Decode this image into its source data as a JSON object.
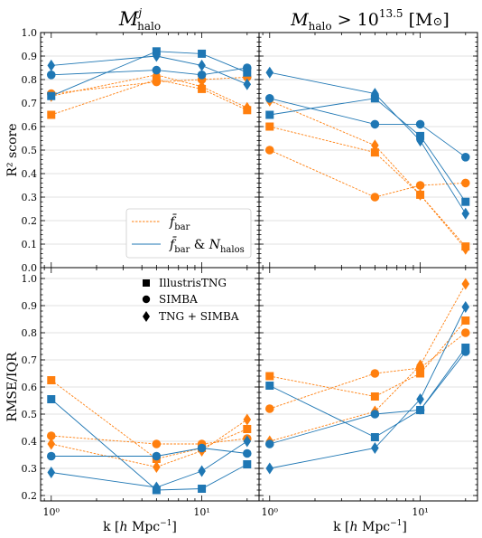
{
  "titles": {
    "left_base": "M",
    "left_sup": "j",
    "left_sub": "halo",
    "right_base": "M",
    "right_sub": "halo",
    "right_rest": " > 10",
    "right_exp": "13.5",
    "right_unit_open": " [M",
    "right_unit_sym": "⊙",
    "right_unit_close": "]"
  },
  "ylabel_top": "R² score",
  "ylabel_bottom": "RMSE/IQR",
  "xlabel": "k [h Mpc⁻¹]",
  "legend_lines": {
    "fbar": "f̄ bar",
    "fbar_n": "f̄ bar & N halos"
  },
  "legend_markers": {
    "tng": "IllustrisTNG",
    "simba": "SIMBA",
    "both": "TNG + SIMBA"
  },
  "colors": {
    "fbar": "#ff7f0e",
    "fbar_n": "#1f77b4"
  },
  "chart_data": [
    {
      "type": "line",
      "panel": "top-left",
      "title": "M^j_halo",
      "ylabel": "R² score",
      "xscale": "log",
      "xlim": [
        0.85,
        24
      ],
      "ylim": [
        0.0,
        1.0
      ],
      "yticks": [
        "0.0",
        "0.1",
        "0.2",
        "0.3",
        "0.4",
        "0.5",
        "0.6",
        "0.7",
        "0.8",
        "0.9",
        "1.0"
      ],
      "x": [
        1,
        5,
        10,
        20
      ],
      "series": [
        {
          "name": "f̄ bar",
          "sim": "IllustrisTNG",
          "values": [
            0.65,
            0.8,
            0.76,
            0.67
          ]
        },
        {
          "name": "f̄ bar",
          "sim": "SIMBA",
          "values": [
            0.74,
            0.79,
            0.8,
            0.81
          ]
        },
        {
          "name": "f̄ bar",
          "sim": "TNG + SIMBA",
          "values": [
            0.73,
            0.82,
            0.77,
            0.68
          ]
        },
        {
          "name": "f̄ bar & N halos",
          "sim": "IllustrisTNG",
          "values": [
            0.73,
            0.92,
            0.91,
            0.83
          ]
        },
        {
          "name": "f̄ bar & N halos",
          "sim": "SIMBA",
          "values": [
            0.82,
            0.84,
            0.82,
            0.85
          ]
        },
        {
          "name": "f̄ bar & N halos",
          "sim": "TNG + SIMBA",
          "values": [
            0.86,
            0.9,
            0.86,
            0.78
          ]
        }
      ]
    },
    {
      "type": "line",
      "panel": "top-right",
      "title": "M_halo > 10^13.5 [M⊙]",
      "xscale": "log",
      "xlim": [
        0.85,
        24
      ],
      "ylim": [
        0.0,
        1.0
      ],
      "x": [
        1,
        5,
        10,
        20
      ],
      "series": [
        {
          "name": "f̄ bar",
          "sim": "IllustrisTNG",
          "values": [
            0.6,
            0.49,
            0.31,
            0.09
          ]
        },
        {
          "name": "f̄ bar",
          "sim": "SIMBA",
          "values": [
            0.5,
            0.3,
            0.35,
            0.36
          ]
        },
        {
          "name": "f̄ bar",
          "sim": "TNG + SIMBA",
          "values": [
            0.71,
            0.52,
            0.31,
            0.08
          ]
        },
        {
          "name": "f̄ bar & N halos",
          "sim": "IllustrisTNG",
          "values": [
            0.65,
            0.72,
            0.56,
            0.28
          ]
        },
        {
          "name": "f̄ bar & N halos",
          "sim": "SIMBA",
          "values": [
            0.72,
            0.61,
            0.61,
            0.47
          ]
        },
        {
          "name": "f̄ bar & N halos",
          "sim": "TNG + SIMBA",
          "values": [
            0.83,
            0.74,
            0.54,
            0.23
          ]
        }
      ]
    },
    {
      "type": "line",
      "panel": "bottom-left",
      "ylabel": "RMSE/IQR",
      "xlabel": "k [h Mpc⁻¹]",
      "xscale": "log",
      "xlim": [
        0.85,
        24
      ],
      "ylim": [
        0.18,
        1.04
      ],
      "yticks": [
        "0.2",
        "0.3",
        "0.4",
        "0.5",
        "0.6",
        "0.7",
        "0.8",
        "0.9",
        "1.0"
      ],
      "xticks": [
        "10⁰",
        "10¹"
      ],
      "x": [
        1,
        5,
        10,
        20
      ],
      "series": [
        {
          "name": "f̄ bar",
          "sim": "IllustrisTNG",
          "values": [
            0.625,
            0.335,
            0.375,
            0.445
          ]
        },
        {
          "name": "f̄ bar",
          "sim": "SIMBA",
          "values": [
            0.42,
            0.39,
            0.39,
            0.41
          ]
        },
        {
          "name": "f̄ bar",
          "sim": "TNG + SIMBA",
          "values": [
            0.39,
            0.305,
            0.365,
            0.48
          ]
        },
        {
          "name": "f̄ bar & N halos",
          "sim": "IllustrisTNG",
          "values": [
            0.555,
            0.22,
            0.225,
            0.315
          ]
        },
        {
          "name": "f̄ bar & N halos",
          "sim": "SIMBA",
          "values": [
            0.345,
            0.345,
            0.375,
            0.355
          ]
        },
        {
          "name": "f̄ bar & N halos",
          "sim": "TNG + SIMBA",
          "values": [
            0.285,
            0.23,
            0.29,
            0.4
          ]
        }
      ]
    },
    {
      "type": "line",
      "panel": "bottom-right",
      "xlabel": "k [h Mpc⁻¹]",
      "xscale": "log",
      "xlim": [
        0.85,
        24
      ],
      "ylim": [
        0.18,
        1.04
      ],
      "xticks": [
        "10⁰",
        "10¹"
      ],
      "x": [
        1,
        5,
        10,
        20
      ],
      "series": [
        {
          "name": "f̄ bar",
          "sim": "IllustrisTNG",
          "values": [
            0.64,
            0.565,
            0.65,
            0.845
          ]
        },
        {
          "name": "f̄ bar",
          "sim": "SIMBA",
          "values": [
            0.52,
            0.65,
            0.67,
            0.8
          ]
        },
        {
          "name": "f̄ bar",
          "sim": "TNG + SIMBA",
          "values": [
            0.4,
            0.51,
            0.68,
            0.98
          ]
        },
        {
          "name": "f̄ bar & N halos",
          "sim": "IllustrisTNG",
          "values": [
            0.605,
            0.415,
            0.515,
            0.745
          ]
        },
        {
          "name": "f̄ bar & N halos",
          "sim": "SIMBA",
          "values": [
            0.39,
            0.5,
            0.515,
            0.73
          ]
        },
        {
          "name": "f̄ bar & N halos",
          "sim": "TNG + SIMBA",
          "values": [
            0.3,
            0.375,
            0.555,
            0.895
          ]
        }
      ]
    }
  ]
}
